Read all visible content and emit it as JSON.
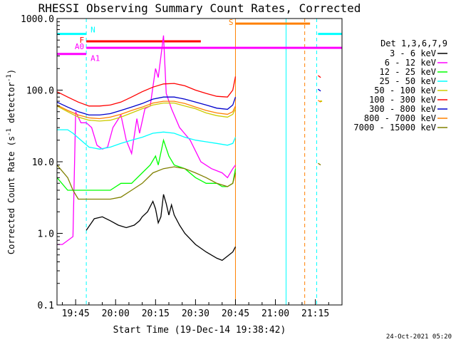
{
  "chart_data": {
    "type": "line",
    "title": "RHESSI Observing Summary Count Rates, Corrected",
    "xlabel": "Start Time (19-Dec-14 19:38:42)",
    "ylabel_prefix": "Corrected Count Rate (s",
    "ylabel_exp1": "-1",
    "ylabel_mid": " detector",
    "ylabel_exp2": "-1",
    "ylabel_suffix": ")",
    "yscale": "log",
    "xlim_min": [
      0,
      107
    ],
    "ylim": [
      0.1,
      1000
    ],
    "x_ticks": [
      {
        "min": 7,
        "label": "19:45"
      },
      {
        "min": 22,
        "label": "20:00"
      },
      {
        "min": 37,
        "label": "20:15"
      },
      {
        "min": 52,
        "label": "20:30"
      },
      {
        "min": 67,
        "label": "20:45"
      },
      {
        "min": 82,
        "label": "21:00"
      },
      {
        "min": 97,
        "label": "21:15"
      }
    ],
    "y_ticks": [
      {
        "value": 1000,
        "label": "1000.0"
      },
      {
        "value": 100,
        "label": "100.0"
      },
      {
        "value": 10,
        "label": "10.0"
      },
      {
        "value": 1,
        "label": "1.0"
      },
      {
        "value": 0.1,
        "label": "0.1"
      }
    ],
    "legend_title": "Det 1,3,6,7,9",
    "legend_placement": "right",
    "series": [
      {
        "name": "3 - 6 keV",
        "color": "#000000",
        "points": [
          [
            11,
            1.1
          ],
          [
            14,
            1.6
          ],
          [
            17,
            1.7
          ],
          [
            20,
            1.5
          ],
          [
            23,
            1.3
          ],
          [
            26,
            1.2
          ],
          [
            29,
            1.3
          ],
          [
            31,
            1.5
          ],
          [
            32,
            1.7
          ],
          [
            34,
            2.0
          ],
          [
            36,
            2.8
          ],
          [
            37,
            2.2
          ],
          [
            38,
            1.4
          ],
          [
            39,
            1.7
          ],
          [
            40,
            3.5
          ],
          [
            41,
            2.6
          ],
          [
            42,
            1.8
          ],
          [
            43,
            2.5
          ],
          [
            44,
            1.8
          ],
          [
            46,
            1.3
          ],
          [
            48,
            1.0
          ],
          [
            52,
            0.7
          ],
          [
            56,
            0.55
          ],
          [
            60,
            0.45
          ],
          [
            62,
            0.42
          ],
          [
            64,
            0.48
          ],
          [
            66,
            0.55
          ],
          [
            67,
            0.65
          ],
          [
            98,
            null
          ]
        ]
      },
      {
        "name": "6 - 12 keV",
        "color": "#ff00ff",
        "points": [
          [
            0,
            0.7
          ],
          [
            2,
            0.7
          ],
          [
            6,
            0.9
          ],
          [
            7,
            50
          ],
          [
            9,
            35
          ],
          [
            11,
            35
          ],
          [
            13,
            30
          ],
          [
            15,
            17
          ],
          [
            17,
            15
          ],
          [
            19,
            16
          ],
          [
            21,
            30
          ],
          [
            24,
            45
          ],
          [
            26,
            20
          ],
          [
            28,
            13
          ],
          [
            30,
            40
          ],
          [
            31,
            25
          ],
          [
            33,
            55
          ],
          [
            35,
            60
          ],
          [
            37,
            200
          ],
          [
            38,
            150
          ],
          [
            40,
            580
          ],
          [
            41,
            90
          ],
          [
            43,
            55
          ],
          [
            46,
            30
          ],
          [
            50,
            20
          ],
          [
            54,
            10
          ],
          [
            58,
            8
          ],
          [
            62,
            7
          ],
          [
            64,
            6
          ],
          [
            66,
            8
          ],
          [
            67,
            9
          ],
          [
            98,
            null
          ]
        ]
      },
      {
        "name": "12 - 25 keV",
        "color": "#00ff00",
        "points": [
          [
            0,
            6
          ],
          [
            4,
            4
          ],
          [
            8,
            4
          ],
          [
            12,
            4
          ],
          [
            16,
            4
          ],
          [
            20,
            4
          ],
          [
            24,
            5
          ],
          [
            28,
            5
          ],
          [
            32,
            7
          ],
          [
            35,
            9
          ],
          [
            37,
            12
          ],
          [
            38,
            9
          ],
          [
            40,
            20
          ],
          [
            42,
            12
          ],
          [
            44,
            9
          ],
          [
            48,
            8
          ],
          [
            52,
            6
          ],
          [
            56,
            5
          ],
          [
            60,
            5
          ],
          [
            62,
            4.5
          ],
          [
            64,
            4.5
          ],
          [
            66,
            5
          ],
          [
            67,
            8
          ],
          [
            98,
            null
          ]
        ]
      },
      {
        "name": "25 - 50 keV",
        "color": "#00ffff",
        "points": [
          [
            0,
            28
          ],
          [
            4,
            28
          ],
          [
            6,
            25
          ],
          [
            9,
            20
          ],
          [
            12,
            16
          ],
          [
            16,
            15
          ],
          [
            20,
            16
          ],
          [
            24,
            18
          ],
          [
            28,
            20
          ],
          [
            32,
            22
          ],
          [
            36,
            25
          ],
          [
            40,
            26
          ],
          [
            44,
            25
          ],
          [
            48,
            22
          ],
          [
            52,
            20
          ],
          [
            56,
            19
          ],
          [
            60,
            18
          ],
          [
            64,
            17
          ],
          [
            66,
            18
          ],
          [
            67,
            22
          ],
          [
            98,
            null
          ]
        ]
      },
      {
        "name": "50 - 100 keV",
        "color": "#cccc00",
        "points": [
          [
            0,
            60
          ],
          [
            4,
            50
          ],
          [
            8,
            42
          ],
          [
            12,
            38
          ],
          [
            16,
            37
          ],
          [
            20,
            38
          ],
          [
            24,
            42
          ],
          [
            28,
            48
          ],
          [
            32,
            55
          ],
          [
            36,
            62
          ],
          [
            40,
            66
          ],
          [
            44,
            66
          ],
          [
            48,
            60
          ],
          [
            52,
            55
          ],
          [
            56,
            48
          ],
          [
            60,
            44
          ],
          [
            64,
            42
          ],
          [
            66,
            46
          ],
          [
            67,
            55
          ],
          [
            98,
            null
          ],
          [
            99,
            70
          ]
        ]
      },
      {
        "name": "100 - 300 keV",
        "color": "#ff0000",
        "points": [
          [
            0,
            95
          ],
          [
            4,
            80
          ],
          [
            8,
            68
          ],
          [
            12,
            60
          ],
          [
            16,
            60
          ],
          [
            20,
            62
          ],
          [
            24,
            68
          ],
          [
            28,
            80
          ],
          [
            32,
            95
          ],
          [
            36,
            110
          ],
          [
            40,
            122
          ],
          [
            44,
            124
          ],
          [
            48,
            115
          ],
          [
            52,
            100
          ],
          [
            56,
            90
          ],
          [
            60,
            82
          ],
          [
            64,
            80
          ],
          [
            66,
            100
          ],
          [
            67,
            155
          ],
          [
            98,
            null
          ],
          [
            98,
            160
          ],
          [
            99,
            150
          ]
        ]
      },
      {
        "name": "300 - 800 keV",
        "color": "#0000cc",
        "points": [
          [
            0,
            68
          ],
          [
            4,
            58
          ],
          [
            8,
            50
          ],
          [
            12,
            45
          ],
          [
            16,
            45
          ],
          [
            20,
            47
          ],
          [
            24,
            52
          ],
          [
            28,
            58
          ],
          [
            32,
            65
          ],
          [
            36,
            75
          ],
          [
            40,
            80
          ],
          [
            44,
            80
          ],
          [
            48,
            75
          ],
          [
            52,
            68
          ],
          [
            56,
            62
          ],
          [
            60,
            56
          ],
          [
            64,
            54
          ],
          [
            66,
            62
          ],
          [
            67,
            80
          ],
          [
            98,
            null
          ],
          [
            98,
            103
          ],
          [
            99,
            97
          ]
        ]
      },
      {
        "name": "800 - 7000 keV",
        "color": "#ff8000",
        "points": [
          [
            0,
            62
          ],
          [
            4,
            52
          ],
          [
            8,
            45
          ],
          [
            12,
            41
          ],
          [
            16,
            40
          ],
          [
            20,
            42
          ],
          [
            24,
            46
          ],
          [
            28,
            52
          ],
          [
            32,
            58
          ],
          [
            36,
            66
          ],
          [
            40,
            70
          ],
          [
            44,
            70
          ],
          [
            48,
            65
          ],
          [
            52,
            58
          ],
          [
            56,
            52
          ],
          [
            60,
            48
          ],
          [
            64,
            46
          ],
          [
            66,
            50
          ],
          [
            67,
            60
          ],
          [
            98,
            null
          ],
          [
            98,
            72
          ],
          [
            99,
            68
          ]
        ]
      },
      {
        "name": "7000 - 15000 keV",
        "color": "#808000",
        "points": [
          [
            0,
            9
          ],
          [
            4,
            6
          ],
          [
            6,
            4
          ],
          [
            8,
            3
          ],
          [
            12,
            3
          ],
          [
            16,
            3
          ],
          [
            20,
            3
          ],
          [
            24,
            3.2
          ],
          [
            28,
            4
          ],
          [
            32,
            5
          ],
          [
            36,
            7
          ],
          [
            40,
            8
          ],
          [
            44,
            8.5
          ],
          [
            48,
            8
          ],
          [
            52,
            7
          ],
          [
            56,
            6
          ],
          [
            60,
            5
          ],
          [
            64,
            4.5
          ],
          [
            66,
            5
          ],
          [
            67,
            7
          ],
          [
            98,
            null
          ],
          [
            98,
            9.5
          ],
          [
            99,
            9
          ]
        ]
      }
    ],
    "annotations": [
      {
        "label": "N",
        "color": "#00ffff",
        "x1": 0,
        "x2": 11,
        "y": 610,
        "dashed": false,
        "label_side": "right"
      },
      {
        "label": "N",
        "color": "#00ffff",
        "x1": 98,
        "x2": 107,
        "y": 610,
        "dashed": false,
        "label_side": "none"
      },
      {
        "label": "F",
        "color": "#ff0000",
        "x1": 11,
        "x2": 54,
        "y": 480,
        "dashed": false,
        "label_side": "left"
      },
      {
        "label": "A0",
        "color": "#ff00ff",
        "x1": 11,
        "x2": 107,
        "y": 390,
        "dashed": false,
        "label_side": "left"
      },
      {
        "label": "A1",
        "color": "#ff00ff",
        "x1": 0,
        "x2": 11,
        "y": 320,
        "dashed": false,
        "label_side": "right"
      },
      {
        "label": "S",
        "color": "#ff8000",
        "x1": 67,
        "x2": 95,
        "y": 850,
        "dashed": false,
        "label_side": "left"
      }
    ],
    "vlines": [
      {
        "x": 11,
        "color": "#00ffff",
        "dashed": true
      },
      {
        "x": 67,
        "color": "#ff8000",
        "dashed": false
      },
      {
        "x": 86,
        "color": "#00ffff",
        "dashed": false
      },
      {
        "x": 93,
        "color": "#ff8000",
        "dashed": true
      },
      {
        "x": 97.5,
        "color": "#00ffff",
        "dashed": true
      }
    ]
  },
  "footer": {
    "timestamp": "24-Oct-2021 05:20"
  }
}
